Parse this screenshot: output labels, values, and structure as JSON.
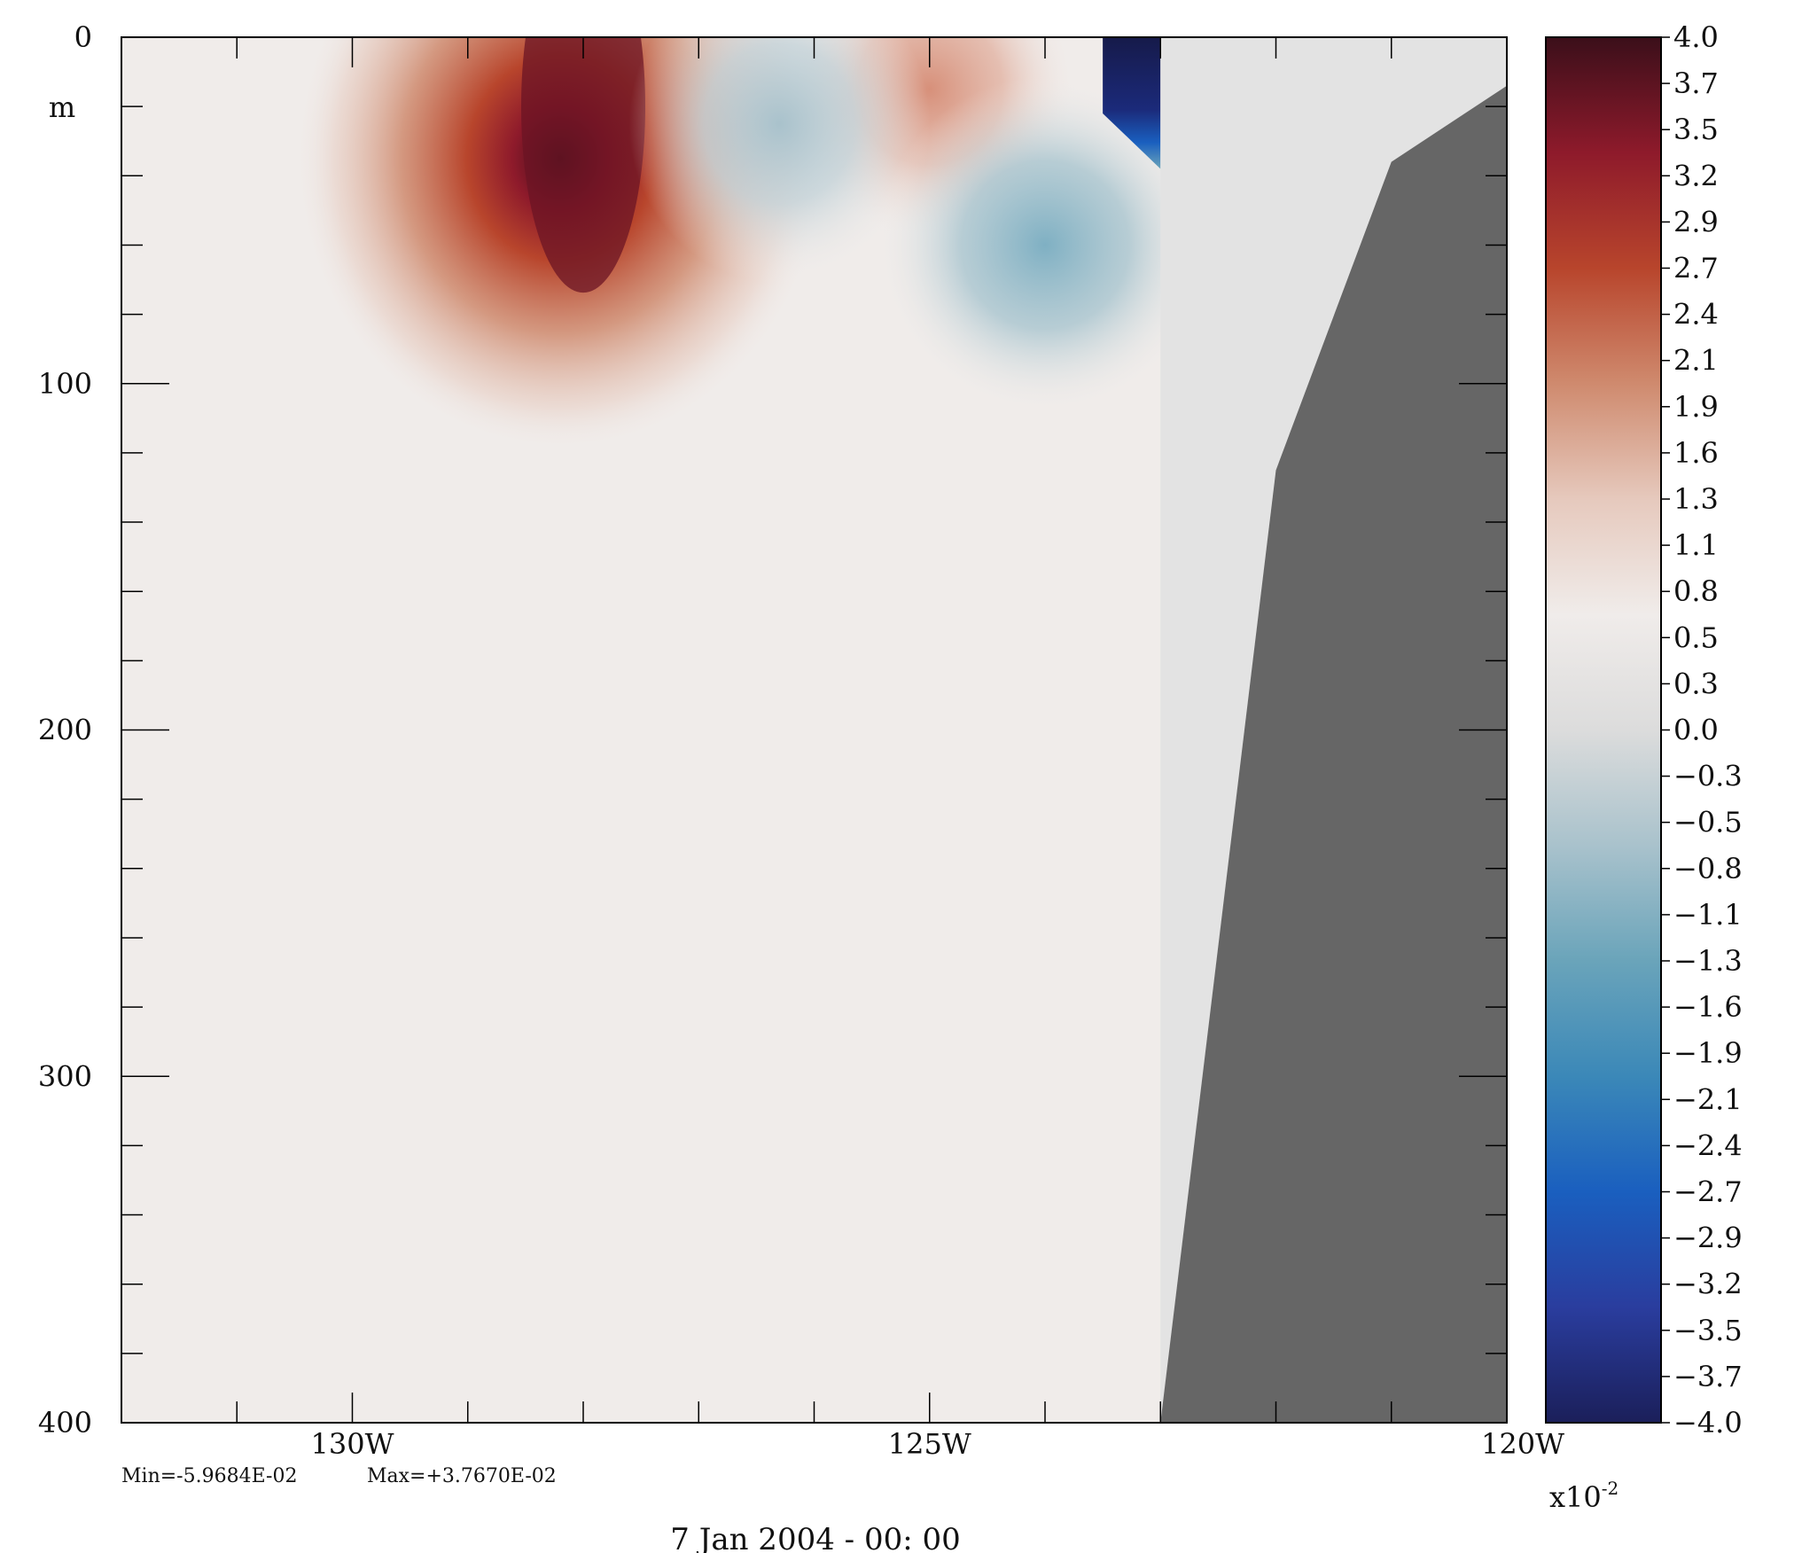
{
  "chart_data": {
    "type": "heatmap",
    "title": "",
    "xlabel": "",
    "ylabel": "m",
    "x_ticks": [
      {
        "value": -130,
        "label": "130W"
      },
      {
        "value": -125,
        "label": "125W"
      },
      {
        "value": -120,
        "label": "120W"
      }
    ],
    "xlim": [
      -132,
      -120
    ],
    "y_ticks": [
      {
        "value": 0,
        "label": "0"
      },
      {
        "value": 100,
        "label": "100"
      },
      {
        "value": 200,
        "label": "200"
      },
      {
        "value": 300,
        "label": "300"
      },
      {
        "value": 400,
        "label": "400"
      }
    ],
    "ylim": [
      0,
      400
    ],
    "y_inverted": true,
    "colorbar": {
      "labels": [
        "4.0",
        "3.7",
        "3.5",
        "3.2",
        "2.9",
        "2.7",
        "2.4",
        "2.1",
        "1.9",
        "1.6",
        "1.3",
        "1.1",
        "0.8",
        "0.5",
        "0.3",
        "0.0",
        "-0.3",
        "-0.5",
        "-0.8",
        "-1.1",
        "-1.3",
        "-1.6",
        "-1.9",
        "-2.1",
        "-2.4",
        "-2.7",
        "-2.9",
        "-3.2",
        "-3.5",
        "-3.7",
        "-4.0"
      ],
      "range": [
        -4.0,
        4.0
      ],
      "multiplier_base": "x10",
      "multiplier_exponent": "-2",
      "colors": [
        "#3b0f1a",
        "#8e1a2b",
        "#b8452c",
        "#cf8a6e",
        "#e6c9bd",
        "#f0ecea",
        "#dcdcdc",
        "#a9c2cc",
        "#6aa4ba",
        "#3b88b8",
        "#1a5fbf",
        "#2a3d9e",
        "#1b1f5a"
      ]
    },
    "field": {
      "features": [
        {
          "kind": "max",
          "lon": -128.0,
          "depth": 20,
          "value": 3.77
        },
        {
          "kind": "positive",
          "lon": -125.0,
          "depth": 15,
          "value": 1.5
        },
        {
          "kind": "negative",
          "lon": -126.3,
          "depth": 25,
          "value": -1.1
        },
        {
          "kind": "negative",
          "lon": -124.0,
          "depth": 60,
          "value": -1.4
        },
        {
          "kind": "min",
          "lon": -123.2,
          "depth": 8,
          "value": -5.97
        }
      ]
    },
    "land_mask": {
      "color": "#666666",
      "boundary": [
        [
          -123,
          400
        ],
        [
          -122,
          125
        ],
        [
          -121,
          36
        ],
        [
          -120,
          14
        ]
      ]
    },
    "stats": {
      "min": "Min=-5.9684E-02",
      "max": "Max=+3.7670E-02"
    },
    "timestamp": "7 Jan 2004 - 00: 00"
  }
}
